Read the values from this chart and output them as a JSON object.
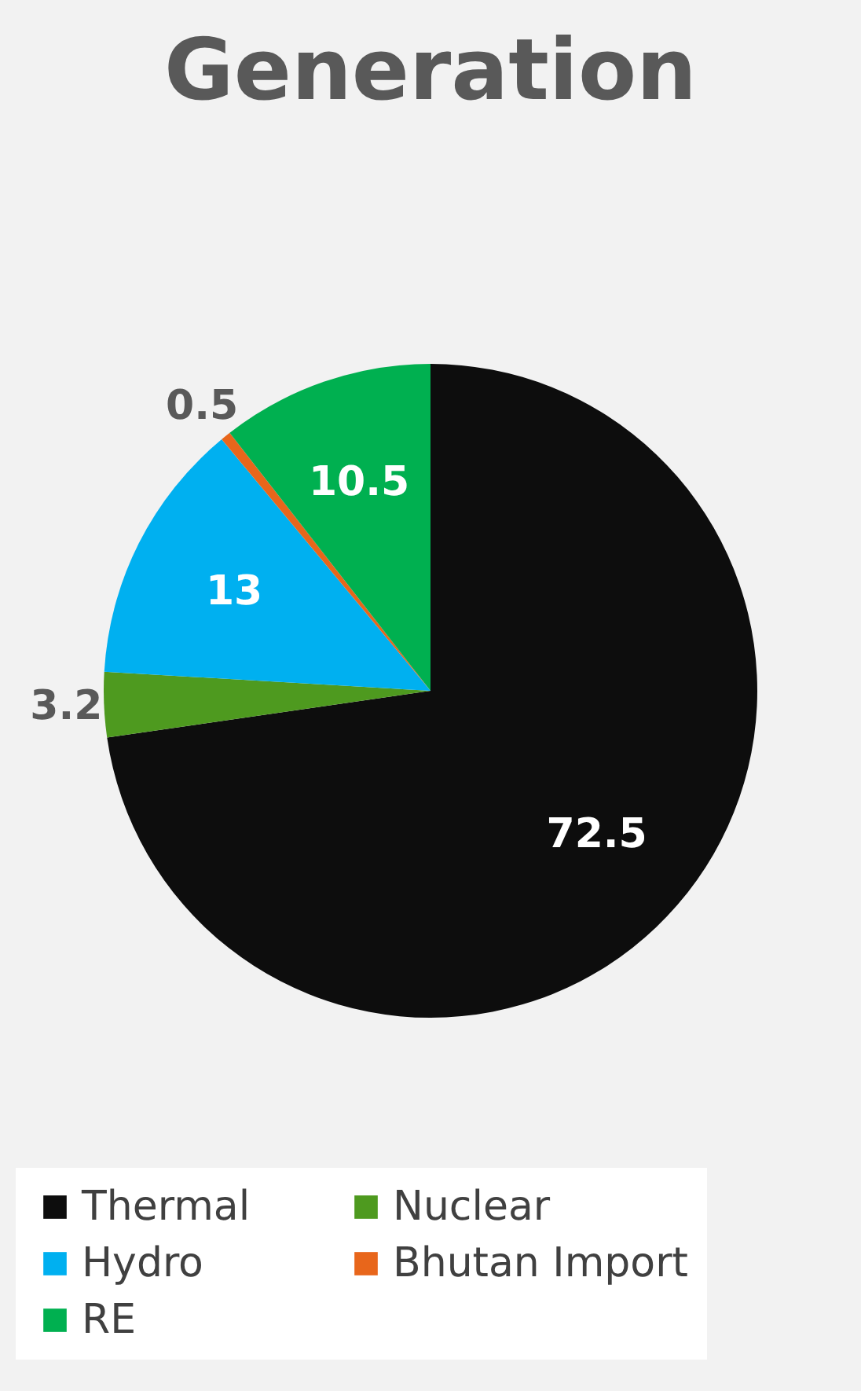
{
  "chart_data": {
    "type": "pie",
    "title": "Generation",
    "categories": [
      "Thermal",
      "Nuclear",
      "Hydro",
      "Bhutan Import",
      "RE"
    ],
    "values": [
      72.5,
      3.2,
      13,
      0.5,
      10.5
    ],
    "colors": [
      "#0d0d0d",
      "#4e9a1f",
      "#00b0f0",
      "#e8661b",
      "#00b050"
    ],
    "data_labels": true,
    "legend": "bottom"
  }
}
